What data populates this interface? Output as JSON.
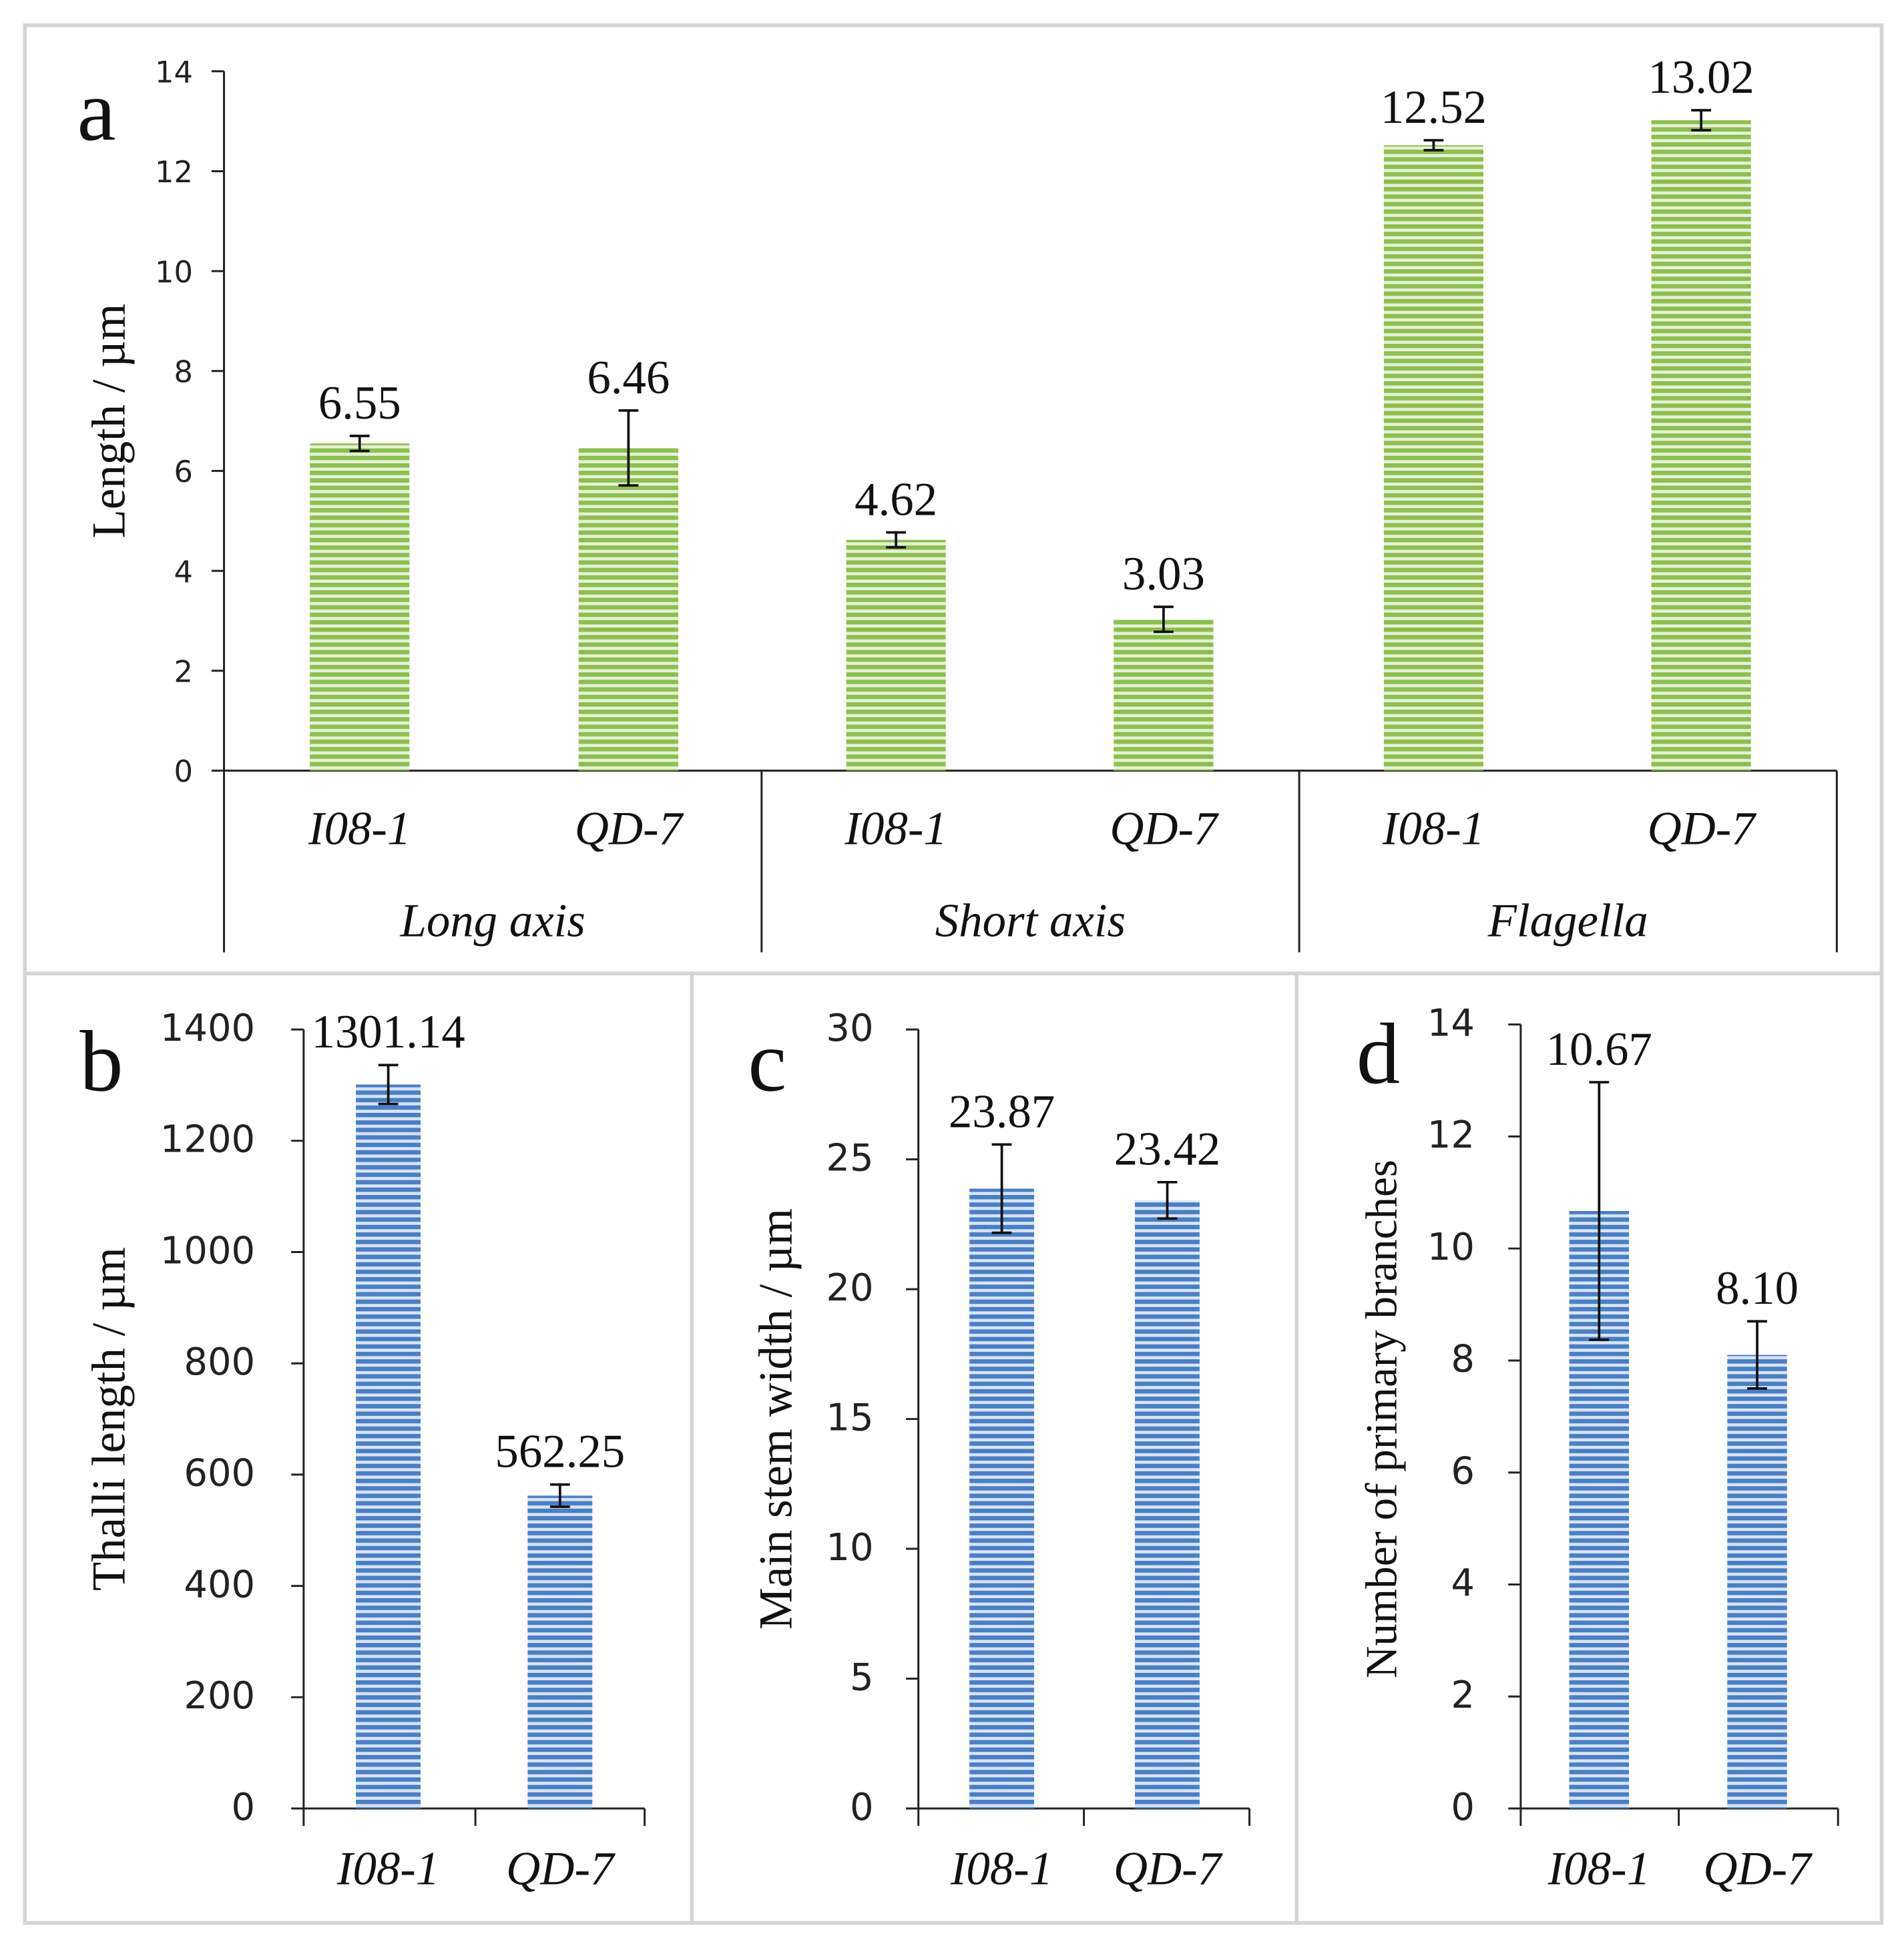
{
  "chart_data": [
    {
      "type": "bar",
      "panel_label": "a",
      "ylabel": "Length / µm",
      "ylim": [
        0,
        14
      ],
      "yticks": [
        0,
        2,
        4,
        6,
        8,
        10,
        12,
        14
      ],
      "groups": [
        "Long axis",
        "Short axis",
        "Flagella"
      ],
      "categories": [
        "I08-1",
        "QD-7",
        "I08-1",
        "QD-7",
        "I08-1",
        "QD-7"
      ],
      "values": [
        6.55,
        6.46,
        4.62,
        3.03,
        12.52,
        13.02
      ],
      "value_labels": [
        "6.55",
        "6.46",
        "4.62",
        "3.03",
        "12.52",
        "13.02"
      ],
      "errors": [
        0.15,
        0.75,
        0.15,
        0.25,
        0.1,
        0.2
      ],
      "color": "#8cbf4f"
    },
    {
      "type": "bar",
      "panel_label": "b",
      "ylabel": "Thalli length / µm",
      "ylim": [
        0,
        1400
      ],
      "yticks": [
        0,
        200,
        400,
        600,
        800,
        1000,
        1200,
        1400
      ],
      "categories": [
        "I08-1",
        "QD-7"
      ],
      "values": [
        1301.14,
        562.25
      ],
      "value_labels": [
        "1301.14",
        "562.25"
      ],
      "errors": [
        35,
        20
      ],
      "color": "#4a7fc4"
    },
    {
      "type": "bar",
      "panel_label": "c",
      "ylabel": "Main stem width / µm",
      "ylim": [
        0,
        30
      ],
      "yticks": [
        0,
        5,
        10,
        15,
        20,
        25,
        30
      ],
      "categories": [
        "I08-1",
        "QD-7"
      ],
      "values": [
        23.87,
        23.42
      ],
      "value_labels": [
        "23.87",
        "23.42"
      ],
      "errors": [
        1.7,
        0.7
      ],
      "color": "#4a7fc4"
    },
    {
      "type": "bar",
      "panel_label": "d",
      "ylabel": "Number of primary branches",
      "ylim": [
        0,
        14
      ],
      "yticks": [
        0,
        2,
        4,
        6,
        8,
        10,
        12,
        14
      ],
      "categories": [
        "I08-1",
        "QD-7"
      ],
      "values": [
        10.67,
        8.1
      ],
      "value_labels": [
        "10.67",
        "8.10"
      ],
      "errors": [
        2.3,
        0.6
      ],
      "color": "#4a7fc4"
    }
  ]
}
